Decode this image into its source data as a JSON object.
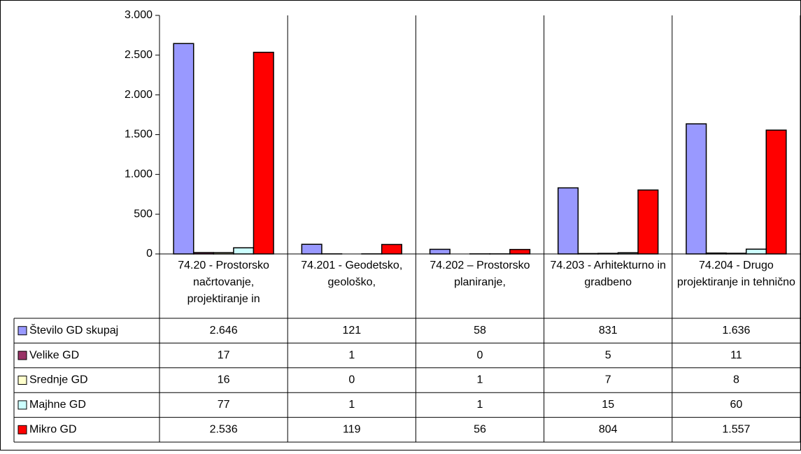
{
  "chart_data": {
    "type": "bar",
    "categories": [
      "74.20 - Prostorsko načrtovanje, projektiranje in",
      "74.201 - Geodetsko, geološko,",
      "74.202 – Prostorsko planiranje,",
      "74.203 - Arhitekturno in gradbeno",
      "74.204 - Drugo projektiranje in tehnično"
    ],
    "series": [
      {
        "name": "Število GD skupaj",
        "color": "#9999ff",
        "values": [
          2646,
          121,
          58,
          831,
          1636
        ],
        "value_labels": [
          "2.646",
          "121",
          "58",
          "831",
          "1.636"
        ]
      },
      {
        "name": "Velike GD",
        "color": "#993366",
        "values": [
          17,
          1,
          0,
          5,
          11
        ]
      },
      {
        "name": "Srednje GD",
        "color": "#ffffcc",
        "values": [
          16,
          0,
          1,
          7,
          8
        ]
      },
      {
        "name": "Majhne GD",
        "color": "#ccffff",
        "values": [
          77,
          1,
          1,
          15,
          60
        ]
      },
      {
        "name": "Mikro GD",
        "color": "#ff0000",
        "values": [
          2536,
          119,
          56,
          804,
          1557
        ],
        "value_labels": [
          "2.536",
          "119",
          "56",
          "804",
          "1.557"
        ]
      }
    ],
    "ylim": [
      0,
      3000
    ],
    "yticks": [
      0,
      500,
      {
        "value": 1000,
        "label": "1.000"
      },
      {
        "value": 1500,
        "label": "1.500"
      },
      {
        "value": 2000,
        "label": "2.000"
      },
      {
        "value": 2500,
        "label": "2.500"
      },
      {
        "value": 3000,
        "label": "3.000"
      }
    ]
  }
}
